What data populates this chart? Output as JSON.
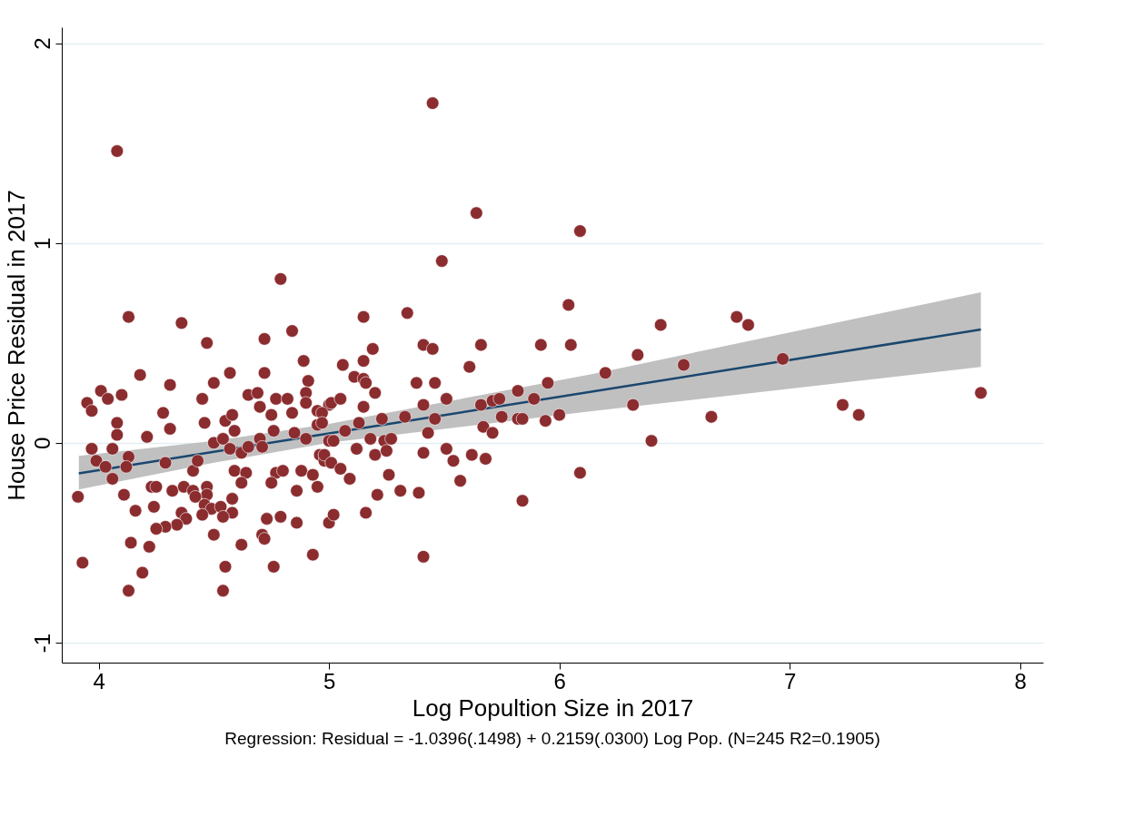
{
  "chart_data": {
    "type": "scatter",
    "xlabel": "Log Popultion Size in 2017",
    "ylabel": "House Price Residual in 2017",
    "annotations": [
      "Regression: Residual = -1.0396(.1498) + 0.2159(.0300) Log Pop. (N=245 R2=0.1905)"
    ],
    "xlim": [
      3.84,
      8.1
    ],
    "xticks": [
      4,
      5,
      6,
      7,
      8
    ],
    "ylim": [
      -1.1,
      2.08
    ],
    "yticks": [
      -1,
      0,
      1,
      2
    ],
    "grid": "y",
    "marker": "circle",
    "series": [
      {
        "type": "line",
        "marker": "none",
        "color": "#1a476f",
        "x": [
          3.914,
          4.5,
          5.0,
          6.14,
          7.83
        ],
        "values": [
          -0.153,
          -0.045,
          0.047,
          0.256,
          0.567
        ],
        "lower": [
          -0.233,
          -0.1,
          0.0,
          0.158,
          0.38
        ],
        "upper": [
          -0.065,
          0.01,
          0.095,
          0.344,
          0.753
        ]
      },
      {
        "color": "#8b2c2f",
        "x": [
          4.79,
          4.13,
          4.36,
          4.47,
          4.72,
          4.84,
          4.89,
          4.91,
          4.18,
          4.31,
          4.5,
          4.57,
          4.72,
          3.95,
          3.97,
          4.01,
          4.04,
          4.1,
          4.28,
          4.31,
          4.45,
          4.46,
          4.65,
          4.69,
          4.7,
          4.75,
          4.77,
          4.82,
          4.84,
          4.9,
          4.9,
          4.95,
          5.0,
          4.55,
          4.58,
          4.08,
          4.08,
          3.97,
          4.06,
          4.21,
          4.59,
          4.5,
          4.54,
          4.57,
          4.62,
          4.65,
          4.7,
          4.71,
          4.76,
          4.85,
          4.9,
          4.95,
          5.0,
          3.99,
          4.03,
          4.06,
          4.13,
          4.12,
          4.29,
          4.41,
          4.43,
          4.59,
          4.64,
          4.62,
          4.77,
          4.8,
          4.75,
          4.88,
          4.93,
          4.95,
          4.96,
          4.98,
          4.23,
          4.25,
          4.32,
          4.37,
          4.41,
          4.47,
          4.47,
          3.91,
          4.11,
          4.86,
          4.58,
          4.16,
          4.24,
          4.42,
          4.46,
          4.49,
          4.53,
          4.58,
          4.54,
          4.45,
          4.36,
          4.38,
          4.34,
          4.29,
          4.25,
          4.14,
          4.22,
          3.93,
          4.19,
          4.13,
          4.5,
          4.55,
          4.54,
          4.62,
          4.73,
          4.79,
          4.71,
          4.72,
          4.76,
          4.86,
          4.93,
          5.0,
          5.49,
          6.04,
          5.15,
          5.34,
          5.19,
          5.41,
          5.45,
          5.66,
          5.92,
          6.05,
          5.06,
          5.15,
          5.61,
          5.11,
          5.15,
          5.16,
          5.38,
          5.46,
          5.2,
          5.01,
          5.05,
          5.15,
          5.41,
          5.51,
          5.66,
          5.71,
          5.74,
          5.82,
          5.89,
          5.95,
          4.97,
          4.97,
          5.13,
          5.23,
          5.33,
          5.46,
          5.67,
          5.71,
          5.75,
          5.82,
          5.84,
          5.94,
          6.0,
          5.07,
          5.18,
          5.43,
          5.02,
          5.24,
          5.27,
          5.12,
          5.2,
          5.25,
          4.98,
          5.01,
          5.05,
          5.09,
          5.41,
          5.51,
          5.54,
          5.62,
          5.68,
          5.26,
          5.57,
          6.09,
          5.21,
          5.31,
          5.39,
          5.84,
          5.02,
          5.16,
          5.41,
          4.08,
          5.45,
          5.64,
          6.09,
          6.44,
          6.77,
          6.82,
          6.34,
          6.2,
          6.54,
          6.97,
          6.32,
          6.66,
          6.4,
          7.23,
          7.3,
          7.83
        ],
        "values": [
          0.82,
          0.63,
          0.6,
          0.5,
          0.52,
          0.56,
          0.41,
          0.31,
          0.34,
          0.29,
          0.3,
          0.35,
          0.35,
          0.2,
          0.16,
          0.26,
          0.22,
          0.24,
          0.15,
          0.07,
          0.22,
          0.1,
          0.24,
          0.25,
          0.18,
          0.14,
          0.22,
          0.22,
          0.15,
          0.25,
          0.2,
          0.16,
          0.19,
          0.11,
          0.14,
          0.1,
          0.04,
          -0.03,
          -0.03,
          0.03,
          0.06,
          0.0,
          0.02,
          -0.03,
          -0.05,
          -0.02,
          0.02,
          -0.02,
          0.06,
          0.05,
          0.02,
          0.09,
          0.01,
          -0.09,
          -0.12,
          -0.18,
          -0.07,
          -0.12,
          -0.1,
          -0.14,
          -0.09,
          -0.14,
          -0.15,
          -0.2,
          -0.15,
          -0.14,
          -0.2,
          -0.14,
          -0.16,
          -0.22,
          -0.06,
          -0.09,
          -0.22,
          -0.22,
          -0.24,
          -0.22,
          -0.24,
          -0.22,
          -0.26,
          -0.27,
          -0.26,
          -0.24,
          -0.28,
          -0.34,
          -0.32,
          -0.27,
          -0.31,
          -0.33,
          -0.32,
          -0.35,
          -0.37,
          -0.36,
          -0.35,
          -0.38,
          -0.41,
          -0.42,
          -0.43,
          -0.5,
          -0.52,
          -0.6,
          -0.65,
          -0.74,
          -0.46,
          -0.62,
          -0.74,
          -0.51,
          -0.38,
          -0.37,
          -0.46,
          -0.48,
          -0.62,
          -0.4,
          -0.56,
          -0.4,
          0.91,
          0.69,
          0.63,
          0.65,
          0.47,
          0.49,
          0.47,
          0.49,
          0.49,
          0.49,
          0.39,
          0.41,
          0.38,
          0.33,
          0.32,
          0.3,
          0.3,
          0.3,
          0.25,
          0.2,
          0.22,
          0.18,
          0.19,
          0.22,
          0.19,
          0.21,
          0.22,
          0.26,
          0.22,
          0.3,
          0.15,
          0.1,
          0.1,
          0.12,
          0.13,
          0.12,
          0.08,
          0.05,
          0.13,
          0.12,
          0.12,
          0.11,
          0.14,
          0.06,
          0.02,
          0.05,
          0.01,
          0.01,
          0.02,
          -0.03,
          -0.06,
          -0.04,
          -0.06,
          -0.1,
          -0.13,
          -0.18,
          -0.05,
          -0.03,
          -0.09,
          -0.06,
          -0.08,
          -0.16,
          -0.19,
          -0.15,
          -0.26,
          -0.24,
          -0.25,
          -0.29,
          -0.36,
          -0.35,
          -0.57,
          1.46,
          1.7,
          1.15,
          1.06,
          0.59,
          0.63,
          0.59,
          0.44,
          0.35,
          0.39,
          0.42,
          0.19,
          0.13,
          0.01,
          0.19,
          0.14,
          0.25
        ]
      }
    ]
  }
}
